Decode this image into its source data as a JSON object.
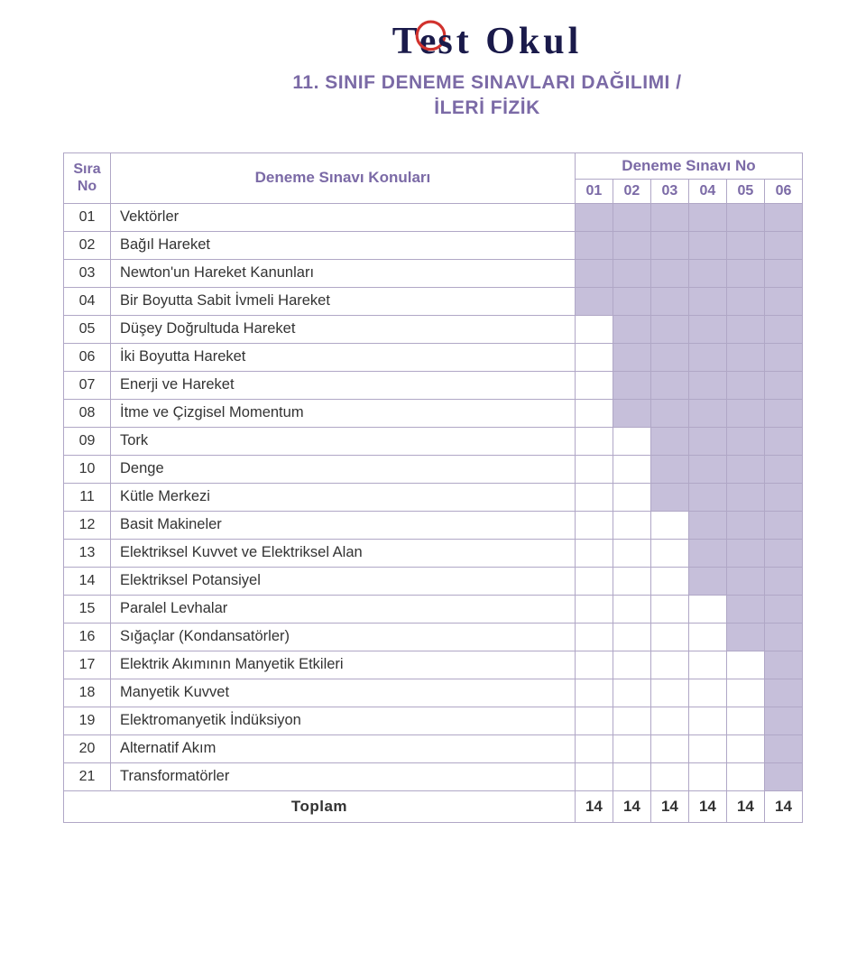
{
  "logo": {
    "text_before": "T",
    "ring_letter": "e",
    "text_after": "st Okul"
  },
  "title": {
    "line1": "11. SINIF DENEME SINAVLARI DAĞILIMI /",
    "line2": "İLERİ FİZİK"
  },
  "header": {
    "sira_label_line1": "Sıra",
    "sira_label_line2": "No",
    "konular_label": "Deneme Sınavı Konuları",
    "super_label": "Deneme Sınavı No",
    "exam_cols": [
      "01",
      "02",
      "03",
      "04",
      "05",
      "06"
    ]
  },
  "colors": {
    "accent": "#7b6aa6",
    "filled": "#c6bfda",
    "border": "#b0a7c6",
    "logo_text": "#1a1a4a",
    "ring": "#d1322d"
  },
  "rows": [
    {
      "no": "01",
      "topic": "Vektörler",
      "cells": [
        1,
        1,
        1,
        1,
        1,
        1
      ]
    },
    {
      "no": "02",
      "topic": "Bağıl Hareket",
      "cells": [
        1,
        1,
        1,
        1,
        1,
        1
      ]
    },
    {
      "no": "03",
      "topic": "Newton'un Hareket Kanunları",
      "cells": [
        1,
        1,
        1,
        1,
        1,
        1
      ]
    },
    {
      "no": "04",
      "topic": "Bir Boyutta Sabit İvmeli Hareket",
      "cells": [
        1,
        1,
        1,
        1,
        1,
        1
      ]
    },
    {
      "no": "05",
      "topic": "Düşey Doğrultuda Hareket",
      "cells": [
        0,
        1,
        1,
        1,
        1,
        1
      ]
    },
    {
      "no": "06",
      "topic": "İki Boyutta Hareket",
      "cells": [
        0,
        1,
        1,
        1,
        1,
        1
      ]
    },
    {
      "no": "07",
      "topic": "Enerji ve Hareket",
      "cells": [
        0,
        1,
        1,
        1,
        1,
        1
      ]
    },
    {
      "no": "08",
      "topic": "İtme ve Çizgisel Momentum",
      "cells": [
        0,
        1,
        1,
        1,
        1,
        1
      ]
    },
    {
      "no": "09",
      "topic": "Tork",
      "cells": [
        0,
        0,
        1,
        1,
        1,
        1
      ]
    },
    {
      "no": "10",
      "topic": "Denge",
      "cells": [
        0,
        0,
        1,
        1,
        1,
        1
      ]
    },
    {
      "no": "11",
      "topic": "Kütle Merkezi",
      "cells": [
        0,
        0,
        1,
        1,
        1,
        1
      ]
    },
    {
      "no": "12",
      "topic": "Basit Makineler",
      "cells": [
        0,
        0,
        0,
        1,
        1,
        1
      ]
    },
    {
      "no": "13",
      "topic": "Elektriksel Kuvvet ve Elektriksel Alan",
      "cells": [
        0,
        0,
        0,
        1,
        1,
        1
      ]
    },
    {
      "no": "14",
      "topic": "Elektriksel Potansiyel",
      "cells": [
        0,
        0,
        0,
        1,
        1,
        1
      ]
    },
    {
      "no": "15",
      "topic": "Paralel Levhalar",
      "cells": [
        0,
        0,
        0,
        0,
        1,
        1
      ]
    },
    {
      "no": "16",
      "topic": "Sığaçlar (Kondansatörler)",
      "cells": [
        0,
        0,
        0,
        0,
        1,
        1
      ]
    },
    {
      "no": "17",
      "topic": "Elektrik Akımının Manyetik Etkileri",
      "cells": [
        0,
        0,
        0,
        0,
        0,
        1
      ]
    },
    {
      "no": "18",
      "topic": "Manyetik Kuvvet",
      "cells": [
        0,
        0,
        0,
        0,
        0,
        1
      ]
    },
    {
      "no": "19",
      "topic": "Elektromanyetik İndüksiyon",
      "cells": [
        0,
        0,
        0,
        0,
        0,
        1
      ]
    },
    {
      "no": "20",
      "topic": "Alternatif Akım",
      "cells": [
        0,
        0,
        0,
        0,
        0,
        1
      ]
    },
    {
      "no": "21",
      "topic": "Transformatörler",
      "cells": [
        0,
        0,
        0,
        0,
        0,
        1
      ]
    }
  ],
  "totals": {
    "label": "Toplam",
    "values": [
      "14",
      "14",
      "14",
      "14",
      "14",
      "14"
    ]
  }
}
